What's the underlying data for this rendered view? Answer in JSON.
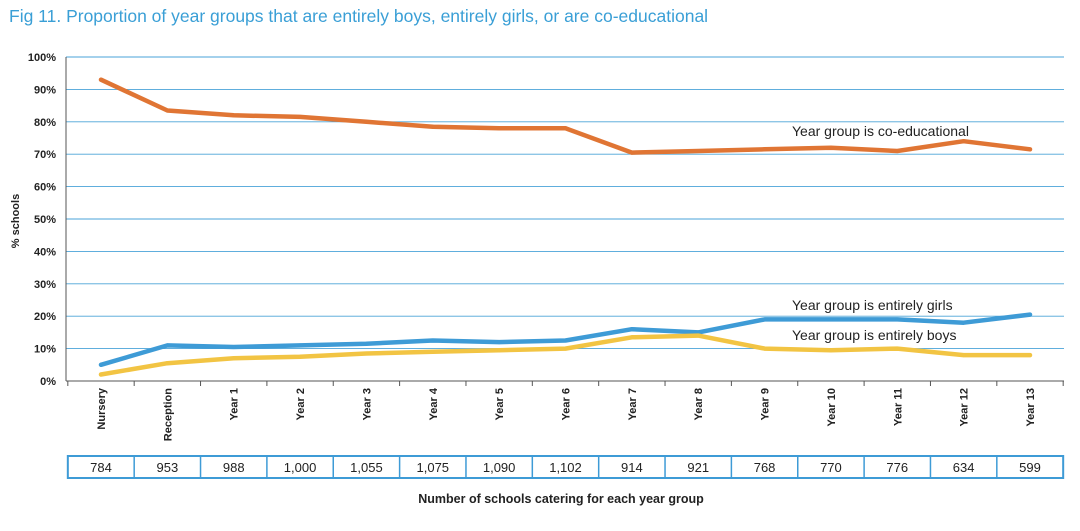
{
  "chart_data": {
    "type": "line",
    "title": "Fig 11. Proportion of year groups that are entirely boys, entirely girls, or are co-educational",
    "ylabel": "% schools",
    "xlabel": "Number of schools catering for each year group",
    "ylim": [
      0,
      100
    ],
    "yticks": [
      0,
      10,
      20,
      30,
      40,
      50,
      60,
      70,
      80,
      90,
      100
    ],
    "ytick_labels": [
      "0%",
      "10%",
      "20%",
      "30%",
      "40%",
      "50%",
      "60%",
      "70%",
      "80%",
      "90%",
      "100%"
    ],
    "grid": true,
    "categories": [
      "Nursery",
      "Reception",
      "Year 1",
      "Year 2",
      "Year 3",
      "Year 4",
      "Year 5",
      "Year 6",
      "Year 7",
      "Year 8",
      "Year 9",
      "Year 10",
      "Year 11",
      "Year 12",
      "Year 13"
    ],
    "counts": [
      "784",
      "953",
      "988",
      "1,000",
      "1,055",
      "1,075",
      "1,090",
      "1,102",
      "914",
      "921",
      "768",
      "770",
      "776",
      "634",
      "599"
    ],
    "series": [
      {
        "name": "Year group is co-educational",
        "color": "#e07534",
        "values": [
          93,
          83.5,
          82,
          81.5,
          80,
          78.5,
          78,
          78,
          70.5,
          71,
          71.5,
          72,
          71,
          74,
          71.5
        ]
      },
      {
        "name": "Year group is entirely girls",
        "color": "#3e9bd6",
        "values": [
          5,
          11,
          10.5,
          11,
          11.5,
          12.5,
          12,
          12.5,
          16,
          15,
          19,
          19,
          19,
          18,
          20.5
        ]
      },
      {
        "name": "Year group is entirely boys",
        "color": "#f2c443",
        "values": [
          2,
          5.5,
          7,
          7.5,
          8.5,
          9,
          9.5,
          10,
          13.5,
          14,
          10,
          9.5,
          10,
          8,
          8
        ]
      }
    ]
  }
}
